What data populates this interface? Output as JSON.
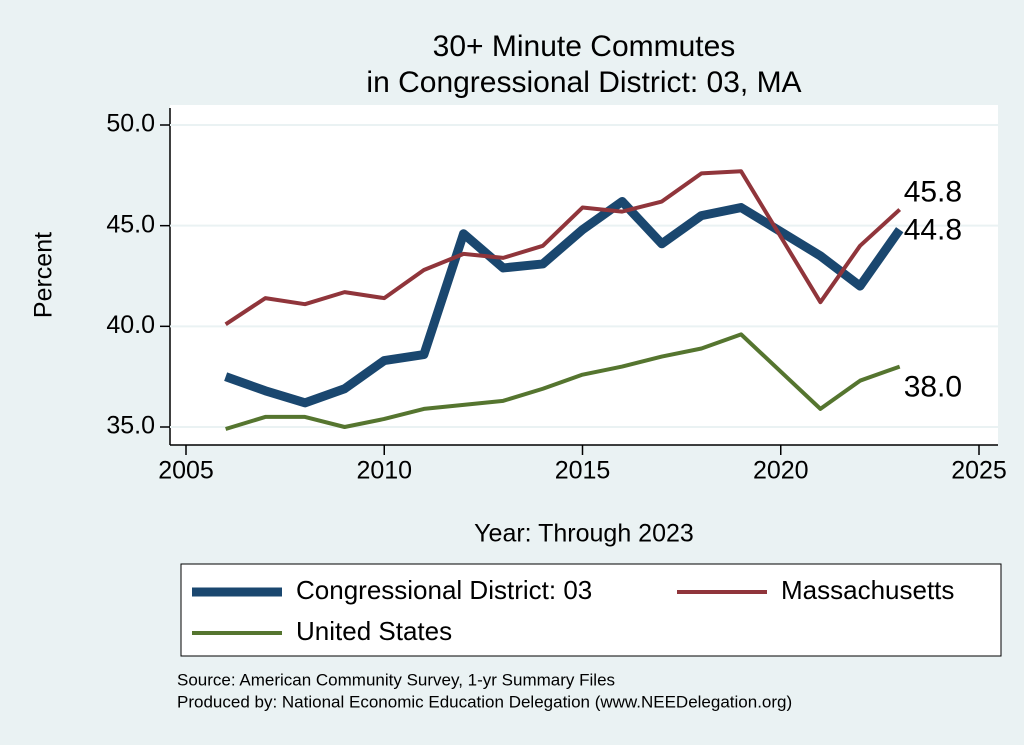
{
  "chart_data": {
    "type": "line",
    "title": [
      "30+ Minute Commutes",
      "in Congressional District:  03, MA"
    ],
    "x": [
      2006,
      2007,
      2008,
      2009,
      2010,
      2011,
      2012,
      2013,
      2014,
      2015,
      2016,
      2017,
      2018,
      2019,
      2021,
      2022,
      2023
    ],
    "series": [
      {
        "name": "Congressional District:  03",
        "color": "#1a476f",
        "values": [
          37.5,
          36.8,
          36.2,
          36.9,
          38.3,
          38.6,
          44.6,
          42.9,
          43.1,
          44.8,
          46.2,
          44.1,
          45.5,
          45.9,
          43.5,
          42.0,
          44.8
        ],
        "value_labels": [
          null,
          null,
          null,
          null,
          null,
          null,
          null,
          null,
          null,
          null,
          null,
          null,
          null,
          null,
          null,
          null,
          "44.8"
        ]
      },
      {
        "name": "Massachusetts",
        "color": "#90353b",
        "values": [
          40.1,
          41.4,
          41.1,
          41.7,
          41.4,
          42.8,
          43.6,
          43.4,
          44.0,
          45.9,
          45.7,
          46.2,
          47.6,
          47.7,
          41.2,
          44.0,
          45.8
        ],
        "value_labels": [
          null,
          null,
          null,
          null,
          null,
          null,
          null,
          null,
          null,
          null,
          null,
          null,
          null,
          null,
          null,
          null,
          "45.8"
        ]
      },
      {
        "name": "United States",
        "color": "#55752f",
        "values": [
          34.9,
          35.5,
          35.5,
          35.0,
          35.4,
          35.9,
          36.1,
          36.3,
          36.9,
          37.6,
          38.0,
          38.5,
          38.9,
          39.6,
          35.9,
          37.3,
          38.0
        ],
        "value_labels": [
          null,
          null,
          null,
          null,
          null,
          null,
          null,
          null,
          null,
          null,
          null,
          null,
          null,
          null,
          null,
          null,
          "38.0"
        ]
      }
    ],
    "xlabel": "Year: Through 2023",
    "ylabel": "Percent",
    "xlim": [
      2005,
      2025
    ],
    "xticks": [
      2005,
      2010,
      2015,
      2020,
      2025
    ],
    "ylim": [
      35,
      50
    ],
    "yticks": [
      {
        "value": 35,
        "label": "35.0"
      },
      {
        "value": 40,
        "label": "40.0"
      },
      {
        "value": 45,
        "label": "45.0"
      },
      {
        "value": 50,
        "label": "50.0"
      }
    ],
    "grid": true,
    "notes": [
      "Source: American Community Survey, 1-yr Summary Files",
      "Produced by: National Economic Education Delegation (www.NEEDelegation.org)"
    ]
  }
}
